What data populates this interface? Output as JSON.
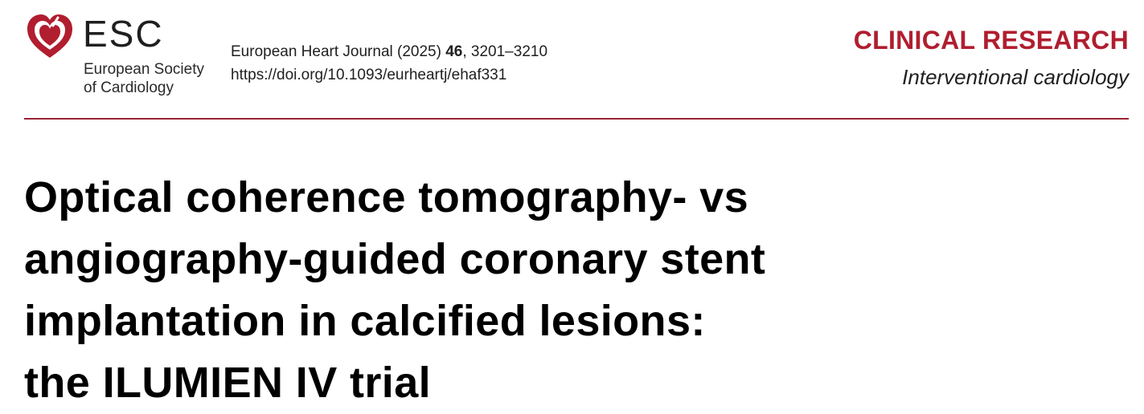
{
  "header": {
    "logo": {
      "abbr": "ESC",
      "name_line1": "European Society",
      "name_line2": "of Cardiology",
      "icon": "heart-logo-icon",
      "color": "#b01e2f"
    },
    "citation": {
      "journal_prefix": "European Heart Journal (2025) ",
      "volume": "46",
      "pages": ", 3201–3210",
      "doi": "https://doi.org/10.1093/eurheartj/ehaf331"
    },
    "section": "CLINICAL RESEARCH",
    "subsection": "Interventional cardiology",
    "accent_color": "#b01e2f"
  },
  "article": {
    "title_lines": [
      "Optical coherence tomography- vs",
      "angiography-guided coronary stent",
      "implantation in calcified lesions:",
      "the ILUMIEN IV trial"
    ]
  }
}
